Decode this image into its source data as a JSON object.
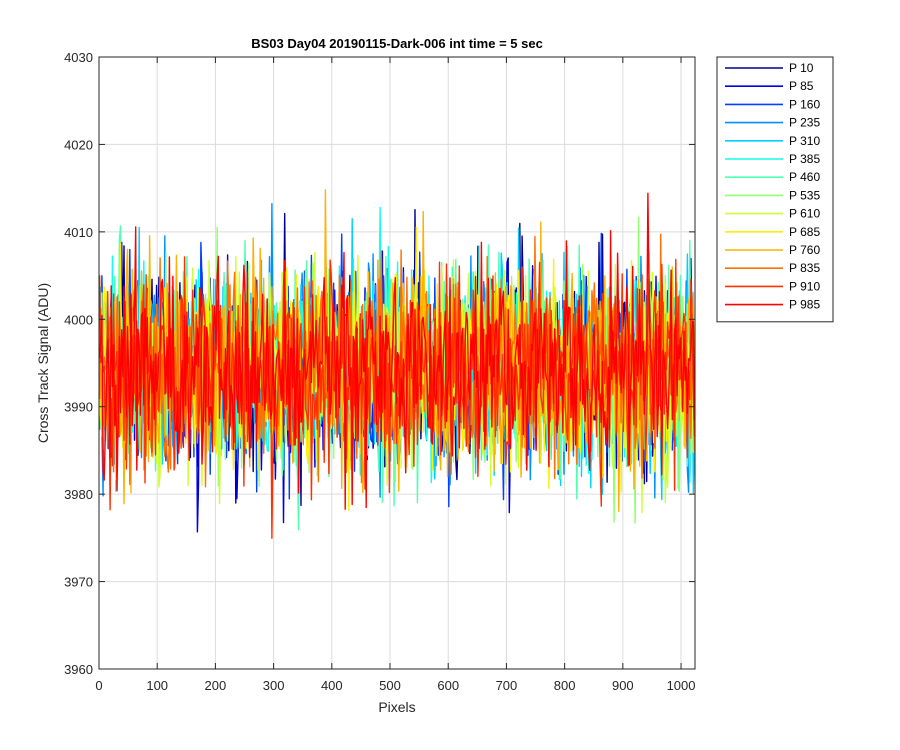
{
  "chart_data": {
    "type": "line",
    "title": "BS03 Day04 20190115-Dark-006 int time = 5 sec",
    "xlabel": "Pixels",
    "ylabel": "Cross Track Signal (ADU)",
    "xlim": [
      0,
      1024
    ],
    "ylim": [
      3960,
      4030
    ],
    "xticks": [
      0,
      100,
      200,
      300,
      400,
      500,
      600,
      700,
      800,
      900,
      1000
    ],
    "yticks": [
      3960,
      3970,
      3980,
      3990,
      4000,
      4010,
      4020,
      4030
    ],
    "xtick_labels": [
      "0",
      "100",
      "200",
      "300",
      "400",
      "500",
      "600",
      "700",
      "800",
      "900",
      "1000"
    ],
    "ytick_labels": [
      "3960",
      "3970",
      "3980",
      "3990",
      "4000",
      "4010",
      "4020",
      "4030"
    ],
    "grid": true,
    "legend_position": "outside-top-right",
    "series": [
      {
        "name": "P 10",
        "color": "#00008f",
        "mean": 3994,
        "spread": 9
      },
      {
        "name": "P 85",
        "color": "#0000e0",
        "mean": 3994,
        "spread": 9
      },
      {
        "name": "P 160",
        "color": "#0040ff",
        "mean": 3994,
        "spread": 9
      },
      {
        "name": "P 235",
        "color": "#0090ff",
        "mean": 3994,
        "spread": 9
      },
      {
        "name": "P 310",
        "color": "#00d0ff",
        "mean": 3994,
        "spread": 9
      },
      {
        "name": "P 385",
        "color": "#10ffef",
        "mean": 3994,
        "spread": 9
      },
      {
        "name": "P 460",
        "color": "#50ffaf",
        "mean": 3994,
        "spread": 9
      },
      {
        "name": "P 535",
        "color": "#90ff70",
        "mean": 3994,
        "spread": 9
      },
      {
        "name": "P 610",
        "color": "#cfff30",
        "mean": 3994,
        "spread": 9
      },
      {
        "name": "P 685",
        "color": "#ffef00",
        "mean": 3994,
        "spread": 9
      },
      {
        "name": "P 760",
        "color": "#ffb000",
        "mean": 3994,
        "spread": 9
      },
      {
        "name": "P 835",
        "color": "#ff7000",
        "mean": 3994,
        "spread": 9
      },
      {
        "name": "P 910",
        "color": "#ff3000",
        "mean": 3994,
        "spread": 9
      },
      {
        "name": "P 985",
        "color": "#ff0000",
        "mean": 3994,
        "spread": 9
      }
    ]
  }
}
